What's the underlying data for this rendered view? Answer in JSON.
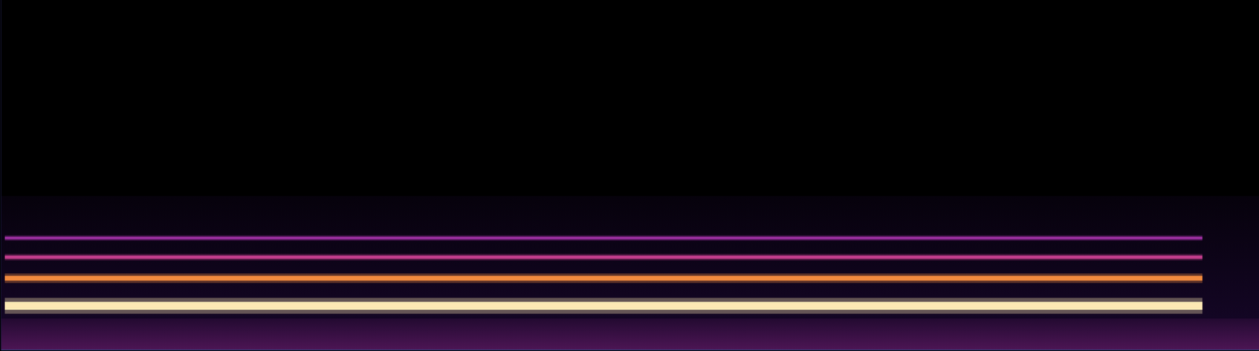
{
  "chart_data": {
    "type": "spectrogram",
    "x": [
      0,
      0.3,
      95.5,
      100
    ],
    "xlim": [
      0,
      100
    ],
    "ylim": [
      0,
      100
    ],
    "tick_labels": false,
    "grid": false,
    "series": [
      {
        "type": "area",
        "color": "#2a0c4e",
        "values": [
          44,
          44,
          44,
          44
        ]
      },
      {
        "type": "area",
        "color": "#7a2278",
        "values": [
          9,
          9,
          9,
          9
        ]
      },
      {
        "type": "line",
        "color": "#9b2fa0",
        "values": [
          null,
          32,
          32,
          null
        ]
      },
      {
        "type": "line",
        "color": "#c23d8c",
        "values": [
          null,
          26.5,
          26.5,
          null
        ]
      },
      {
        "type": "line",
        "color": "#f28a3e",
        "values": [
          null,
          20.5,
          20.5,
          null
        ]
      },
      {
        "type": "line",
        "color": "#fde8b4",
        "values": [
          null,
          12.6,
          12.6,
          null
        ]
      }
    ]
  }
}
